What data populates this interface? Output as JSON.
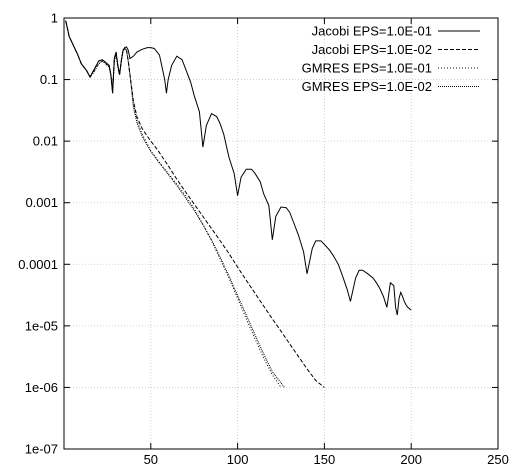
{
  "chart_data": {
    "type": "line",
    "xlim": [
      0,
      250
    ],
    "ylim": [
      1e-07,
      1
    ],
    "yscale": "log",
    "grid": true,
    "legend_position": "top-right",
    "x_ticks": [
      50,
      100,
      150,
      200,
      250
    ],
    "x_tick_labels": [
      "50",
      "100",
      "150",
      "200",
      "250"
    ],
    "y_ticks": [
      1,
      0.1,
      0.01,
      0.001,
      0.0001,
      1e-05,
      1e-06,
      1e-07
    ],
    "y_tick_labels": [
      "1",
      "0.1",
      "0.01",
      "0.001",
      "0.0001",
      "1e-05",
      "1e-06",
      "1e-07"
    ],
    "series": [
      {
        "name": "Jacobi EPS=1.0E-01",
        "color": "#000000",
        "dash": "",
        "x": [
          1,
          3,
          5,
          8,
          10,
          13,
          15,
          17,
          20,
          22,
          24,
          26,
          27,
          28,
          29,
          30,
          31,
          32,
          33,
          34,
          35,
          36,
          37,
          38,
          40,
          42,
          45,
          48,
          50,
          52,
          55,
          58,
          59,
          60,
          62,
          65,
          68,
          70,
          73,
          75,
          78,
          80,
          82,
          85,
          88,
          90,
          92,
          95,
          98,
          100,
          102,
          105,
          108,
          110,
          113,
          115,
          118,
          120,
          122,
          125,
          128,
          130,
          132,
          135,
          138,
          140,
          143,
          145,
          148,
          150,
          153,
          155,
          158,
          160,
          163,
          165,
          168,
          170,
          172,
          175,
          178,
          180,
          182,
          184,
          186,
          188,
          190,
          191,
          192,
          193,
          194,
          195,
          196,
          197,
          198,
          200
        ],
        "y": [
          0.9,
          0.5,
          0.38,
          0.25,
          0.18,
          0.14,
          0.11,
          0.14,
          0.2,
          0.21,
          0.19,
          0.17,
          0.12,
          0.06,
          0.22,
          0.28,
          0.17,
          0.12,
          0.2,
          0.3,
          0.33,
          0.34,
          0.3,
          0.22,
          0.24,
          0.28,
          0.31,
          0.33,
          0.33,
          0.32,
          0.25,
          0.1,
          0.06,
          0.1,
          0.17,
          0.24,
          0.21,
          0.15,
          0.09,
          0.055,
          0.03,
          0.008,
          0.018,
          0.028,
          0.025,
          0.019,
          0.013,
          0.0055,
          0.003,
          0.0013,
          0.0026,
          0.0035,
          0.0035,
          0.003,
          0.0022,
          0.0014,
          0.0009,
          0.00025,
          0.0006,
          0.00085,
          0.00083,
          0.0007,
          0.0005,
          0.0003,
          0.00016,
          7e-05,
          0.00018,
          0.00024,
          0.00024,
          0.00021,
          0.00017,
          0.00014,
          0.0001,
          7e-05,
          4e-05,
          2.5e-05,
          6e-05,
          8e-05,
          8e-05,
          7e-05,
          6e-05,
          5e-05,
          4e-05,
          3e-05,
          2e-05,
          5e-05,
          4.5e-05,
          2e-05,
          1.5e-05,
          2.8e-05,
          3.5e-05,
          3e-05,
          2.5e-05,
          2.2e-05,
          2e-05,
          1.8e-05
        ]
      },
      {
        "name": "Jacobi EPS=1.0E-02",
        "color": "#000000",
        "dash": "4 2",
        "x": [
          1,
          3,
          5,
          8,
          10,
          13,
          15,
          17,
          20,
          22,
          24,
          26,
          27,
          28,
          29,
          30,
          31,
          32,
          33,
          34,
          35,
          36,
          37,
          38,
          40,
          42,
          45,
          48,
          50,
          52,
          55,
          60,
          65,
          70,
          75,
          80,
          85,
          90,
          95,
          100,
          105,
          110,
          115,
          120,
          125,
          130,
          135,
          140,
          145,
          150
        ],
        "y": [
          0.9,
          0.5,
          0.38,
          0.25,
          0.18,
          0.14,
          0.11,
          0.14,
          0.2,
          0.21,
          0.19,
          0.17,
          0.12,
          0.06,
          0.22,
          0.28,
          0.17,
          0.12,
          0.2,
          0.3,
          0.33,
          0.3,
          0.2,
          0.12,
          0.045,
          0.025,
          0.016,
          0.012,
          0.01,
          0.0085,
          0.0065,
          0.004,
          0.0024,
          0.0015,
          0.00095,
          0.0006,
          0.00038,
          0.00024,
          0.00015,
          9e-05,
          5.5e-05,
          3.4e-05,
          2.1e-05,
          1.3e-05,
          8.2e-06,
          5.1e-06,
          3.2e-06,
          2e-06,
          1.3e-06,
          1e-06
        ]
      },
      {
        "name": "GMRES EPS=1.0E-01",
        "color": "#000000",
        "dash": "1 2",
        "x": [
          1,
          3,
          5,
          8,
          10,
          13,
          15,
          17,
          20,
          22,
          24,
          26,
          27,
          28,
          29,
          30,
          31,
          32,
          33,
          34,
          35,
          36,
          37,
          38,
          40,
          42,
          45,
          48,
          50,
          55,
          60,
          65,
          70,
          75,
          80,
          85,
          90,
          95,
          100,
          105,
          110,
          115,
          120,
          125
        ],
        "y": [
          0.9,
          0.5,
          0.38,
          0.25,
          0.18,
          0.14,
          0.11,
          0.13,
          0.18,
          0.2,
          0.18,
          0.16,
          0.12,
          0.07,
          0.2,
          0.26,
          0.16,
          0.12,
          0.2,
          0.29,
          0.32,
          0.3,
          0.2,
          0.12,
          0.04,
          0.022,
          0.013,
          0.009,
          0.007,
          0.0045,
          0.003,
          0.002,
          0.0013,
          0.0008,
          0.00045,
          0.00024,
          0.00012,
          6e-05,
          2.8e-05,
          1.3e-05,
          6.2e-06,
          3e-06,
          1.6e-06,
          1e-06
        ]
      },
      {
        "name": "GMRES EPS=1.0E-02",
        "color": "#000000",
        "dash": "1 1",
        "x": [
          1,
          3,
          5,
          8,
          10,
          13,
          15,
          17,
          20,
          22,
          24,
          26,
          27,
          28,
          29,
          30,
          31,
          32,
          33,
          34,
          35,
          36,
          37,
          38,
          40,
          42,
          45,
          48,
          50,
          55,
          60,
          65,
          70,
          75,
          80,
          85,
          90,
          95,
          100,
          105,
          110,
          115,
          120,
          127
        ],
        "y": [
          0.9,
          0.5,
          0.38,
          0.25,
          0.18,
          0.14,
          0.11,
          0.13,
          0.18,
          0.2,
          0.18,
          0.16,
          0.12,
          0.07,
          0.2,
          0.26,
          0.16,
          0.12,
          0.2,
          0.29,
          0.32,
          0.3,
          0.2,
          0.12,
          0.035,
          0.02,
          0.012,
          0.0085,
          0.0068,
          0.0044,
          0.0029,
          0.0019,
          0.0012,
          0.00075,
          0.00044,
          0.00025,
          0.00013,
          6.5e-05,
          3.1e-05,
          1.5e-05,
          7.2e-06,
          3.5e-06,
          1.8e-06,
          1e-06
        ]
      }
    ]
  }
}
